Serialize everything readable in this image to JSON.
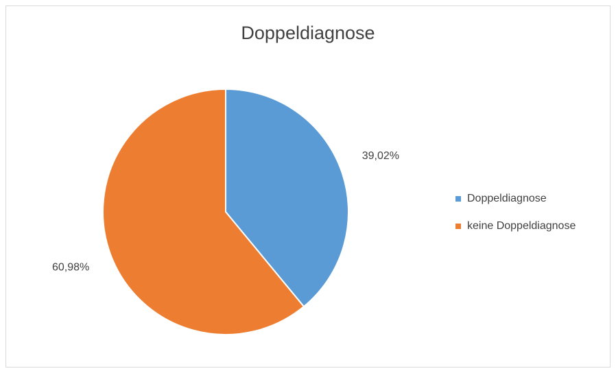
{
  "chart_data": {
    "type": "pie",
    "title": "Doppeldiagnose",
    "categories": [
      "Doppeldiagnose",
      "keine Doppeldiagnose"
    ],
    "values": [
      39.02,
      60.98
    ],
    "value_labels": [
      "39,02%",
      "60,98%"
    ],
    "colors": [
      "#5b9bd5",
      "#ed7d31"
    ],
    "legend": "right"
  }
}
